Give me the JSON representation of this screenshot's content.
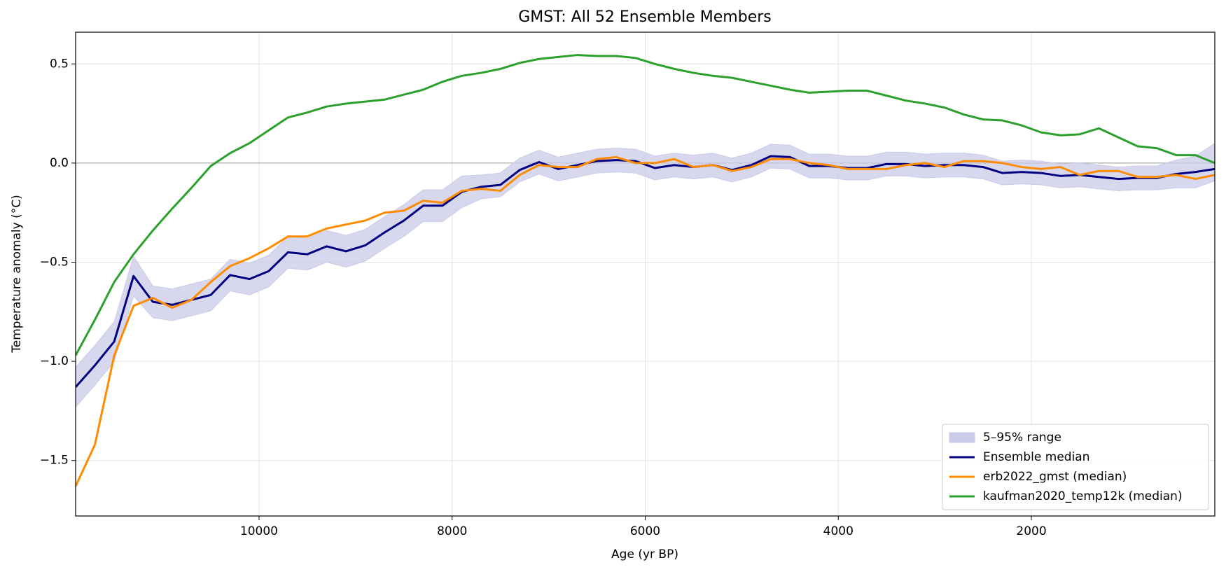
{
  "chart_data": {
    "type": "line",
    "title": "GMST: All 52 Ensemble Members",
    "x_label": "Age (yr BP)",
    "y_label": "Temperature anomaly (°C)",
    "x": [
      11900,
      11700,
      11500,
      11300,
      11100,
      10900,
      10700,
      10500,
      10300,
      10100,
      9900,
      9700,
      9500,
      9300,
      9100,
      8900,
      8700,
      8500,
      8300,
      8100,
      7900,
      7700,
      7500,
      7300,
      7100,
      6900,
      6700,
      6500,
      6300,
      6100,
      5900,
      5700,
      5500,
      5300,
      5100,
      4900,
      4700,
      4500,
      4300,
      4100,
      3900,
      3700,
      3500,
      3300,
      3100,
      2900,
      2700,
      2500,
      2300,
      2100,
      1900,
      1700,
      1500,
      1300,
      1100,
      900,
      700,
      500,
      300,
      100
    ],
    "series": [
      {
        "name": "5–95% range",
        "kind": "band",
        "color": "#c9cbe8",
        "lower": [
          -1.23,
          -1.12,
          -1.0,
          -0.67,
          -0.78,
          -0.795,
          -0.77,
          -0.745,
          -0.645,
          -0.665,
          -0.625,
          -0.53,
          -0.54,
          -0.5,
          -0.525,
          -0.495,
          -0.43,
          -0.37,
          -0.295,
          -0.295,
          -0.225,
          -0.18,
          -0.17,
          -0.095,
          -0.055,
          -0.09,
          -0.07,
          -0.05,
          -0.045,
          -0.05,
          -0.085,
          -0.07,
          -0.08,
          -0.07,
          -0.095,
          -0.07,
          -0.025,
          -0.03,
          -0.075,
          -0.075,
          -0.085,
          -0.085,
          -0.065,
          -0.065,
          -0.075,
          -0.07,
          -0.07,
          -0.08,
          -0.11,
          -0.105,
          -0.11,
          -0.125,
          -0.12,
          -0.13,
          -0.14,
          -0.135,
          -0.135,
          -0.125,
          -0.125,
          -0.09
        ],
        "upper": [
          -1.03,
          -0.92,
          -0.8,
          -0.47,
          -0.62,
          -0.635,
          -0.61,
          -0.585,
          -0.485,
          -0.505,
          -0.465,
          -0.37,
          -0.38,
          -0.34,
          -0.365,
          -0.335,
          -0.27,
          -0.21,
          -0.135,
          -0.135,
          -0.065,
          -0.06,
          -0.05,
          0.025,
          0.065,
          0.03,
          0.05,
          0.07,
          0.075,
          0.07,
          0.035,
          0.05,
          0.04,
          0.05,
          0.025,
          0.05,
          0.095,
          0.09,
          0.045,
          0.045,
          0.035,
          0.035,
          0.055,
          0.055,
          0.045,
          0.05,
          0.05,
          0.04,
          0.01,
          0.015,
          0.01,
          -0.005,
          0.0,
          -0.01,
          -0.02,
          -0.015,
          -0.015,
          0.015,
          0.035,
          0.1
        ]
      },
      {
        "name": "Ensemble median",
        "color": "#000080",
        "values": [
          -1.13,
          -1.02,
          -0.9,
          -0.57,
          -0.7,
          -0.715,
          -0.69,
          -0.665,
          -0.565,
          -0.585,
          -0.545,
          -0.45,
          -0.46,
          -0.42,
          -0.445,
          -0.415,
          -0.35,
          -0.29,
          -0.215,
          -0.215,
          -0.145,
          -0.12,
          -0.11,
          -0.035,
          0.005,
          -0.03,
          -0.01,
          0.01,
          0.015,
          0.01,
          -0.025,
          -0.01,
          -0.02,
          -0.01,
          -0.035,
          -0.01,
          0.035,
          0.03,
          -0.015,
          -0.015,
          -0.025,
          -0.025,
          -0.005,
          -0.005,
          -0.015,
          -0.01,
          -0.01,
          -0.02,
          -0.05,
          -0.045,
          -0.05,
          -0.065,
          -0.06,
          -0.07,
          -0.08,
          -0.075,
          -0.075,
          -0.055,
          -0.045,
          -0.03
        ]
      },
      {
        "name": "erb2022_gmst (median)",
        "color": "#ff8c00",
        "values": [
          -1.63,
          -1.42,
          -0.97,
          -0.72,
          -0.68,
          -0.73,
          -0.69,
          -0.6,
          -0.52,
          -0.48,
          -0.43,
          -0.37,
          -0.37,
          -0.33,
          -0.31,
          -0.29,
          -0.25,
          -0.24,
          -0.19,
          -0.2,
          -0.14,
          -0.13,
          -0.14,
          -0.06,
          -0.01,
          -0.02,
          -0.02,
          0.02,
          0.03,
          0.0,
          0.0,
          0.02,
          -0.02,
          -0.01,
          -0.04,
          -0.02,
          0.02,
          0.02,
          0.0,
          -0.01,
          -0.03,
          -0.03,
          -0.03,
          -0.01,
          0.0,
          -0.02,
          0.01,
          0.01,
          0.0,
          -0.02,
          -0.03,
          -0.02,
          -0.06,
          -0.04,
          -0.04,
          -0.07,
          -0.07,
          -0.06,
          -0.08,
          -0.06
        ]
      },
      {
        "name": "kaufman2020_temp12k (median)",
        "color": "#2ca02c",
        "values": [
          -0.97,
          -0.79,
          -0.6,
          -0.46,
          -0.34,
          -0.23,
          -0.125,
          -0.015,
          0.05,
          0.1,
          0.165,
          0.23,
          0.255,
          0.285,
          0.3,
          0.31,
          0.32,
          0.345,
          0.37,
          0.41,
          0.44,
          0.455,
          0.475,
          0.505,
          0.525,
          0.535,
          0.545,
          0.54,
          0.54,
          0.53,
          0.5,
          0.475,
          0.455,
          0.44,
          0.43,
          0.41,
          0.39,
          0.37,
          0.355,
          0.36,
          0.365,
          0.365,
          0.34,
          0.315,
          0.3,
          0.28,
          0.245,
          0.22,
          0.215,
          0.19,
          0.155,
          0.14,
          0.145,
          0.175,
          0.13,
          0.085,
          0.075,
          0.04,
          0.04,
          0.0
        ]
      }
    ],
    "xlim": [
      11900,
      100
    ],
    "ylim": [
      -1.78,
      0.66
    ],
    "xticks": [
      10000,
      8000,
      6000,
      4000,
      2000
    ],
    "yticks": [
      0.5,
      {
        "value": 0,
        "label": "0.0"
      },
      {
        "value": -0.5,
        "label": "−0.5"
      },
      {
        "value": -1.0,
        "label": "−1.0"
      },
      {
        "value": -1.5,
        "label": "−1.5"
      }
    ],
    "reference_line": 0,
    "grid": true,
    "legend": "lower right"
  }
}
